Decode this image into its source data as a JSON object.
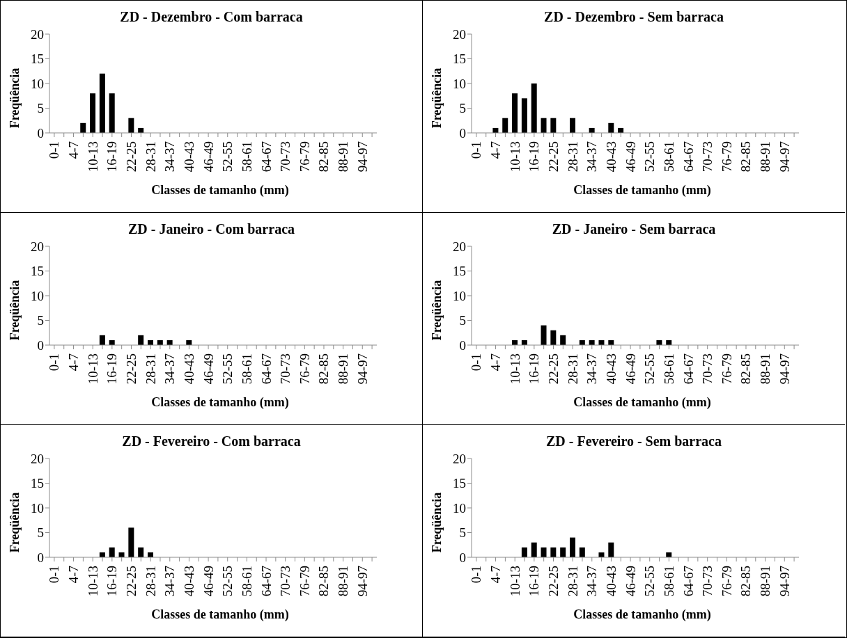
{
  "chart_data": [
    {
      "type": "bar",
      "title": "ZD - Dezembro - Com barraca",
      "xlabel": "Classes de tamanho (mm)",
      "ylabel": "Freqüência",
      "categories": [
        "0-1",
        null,
        "4-7",
        null,
        "10-13",
        null,
        "16-19",
        null,
        "22-25",
        null,
        "28-31",
        null,
        "34-37",
        null,
        "40-43",
        null,
        "46-49",
        null,
        "52-55",
        null,
        "58-61",
        null,
        "64-67",
        null,
        "70-73",
        null,
        "76-79",
        null,
        "82-85",
        null,
        "88-91",
        null,
        "94-97",
        null
      ],
      "values": [
        0,
        0,
        0,
        2,
        8,
        12,
        8,
        0,
        3,
        1,
        0,
        0,
        0,
        0,
        0,
        0,
        0,
        0,
        0,
        0,
        0,
        0,
        0,
        0,
        0,
        0,
        0,
        0,
        0,
        0,
        0,
        0,
        0,
        0
      ],
      "color": "#000000",
      "ylim": [
        0,
        20
      ],
      "yticks": [
        0,
        5,
        10,
        15,
        20
      ],
      "grid": false,
      "legend": false
    },
    {
      "type": "bar",
      "title": "ZD - Dezembro - Sem barraca",
      "xlabel": "Classes de tamanho (mm)",
      "ylabel": "Freqüência",
      "categories": [
        "0-1",
        null,
        "4-7",
        null,
        "10-13",
        null,
        "16-19",
        null,
        "22-25",
        null,
        "28-31",
        null,
        "34-37",
        null,
        "40-43",
        null,
        "46-49",
        null,
        "52-55",
        null,
        "58-61",
        null,
        "64-67",
        null,
        "70-73",
        null,
        "76-79",
        null,
        "82-85",
        null,
        "88-91",
        null,
        "94-97",
        null
      ],
      "values": [
        0,
        0,
        1,
        3,
        8,
        7,
        10,
        3,
        3,
        0,
        3,
        0,
        1,
        0,
        2,
        1,
        0,
        0,
        0,
        0,
        0,
        0,
        0,
        0,
        0,
        0,
        0,
        0,
        0,
        0,
        0,
        0,
        0,
        0
      ],
      "color": "#000000",
      "ylim": [
        0,
        20
      ],
      "yticks": [
        0,
        5,
        10,
        15,
        20
      ],
      "grid": false,
      "legend": false
    },
    {
      "type": "bar",
      "title": "ZD - Janeiro - Com barraca",
      "xlabel": "Classes de tamanho (mm)",
      "ylabel": "Freqüência",
      "categories": [
        "0-1",
        null,
        "4-7",
        null,
        "10-13",
        null,
        "16-19",
        null,
        "22-25",
        null,
        "28-31",
        null,
        "34-37",
        null,
        "40-43",
        null,
        "46-49",
        null,
        "52-55",
        null,
        "58-61",
        null,
        "64-67",
        null,
        "70-73",
        null,
        "76-79",
        null,
        "82-85",
        null,
        "88-91",
        null,
        "94-97",
        null
      ],
      "values": [
        0,
        0,
        0,
        0,
        0,
        2,
        1,
        0,
        0,
        2,
        1,
        1,
        1,
        0,
        1,
        0,
        0,
        0,
        0,
        0,
        0,
        0,
        0,
        0,
        0,
        0,
        0,
        0,
        0,
        0,
        0,
        0,
        0,
        0
      ],
      "color": "#000000",
      "ylim": [
        0,
        20
      ],
      "yticks": [
        0,
        5,
        10,
        15,
        20
      ],
      "grid": false,
      "legend": false
    },
    {
      "type": "bar",
      "title": "ZD - Janeiro - Sem barraca",
      "xlabel": "Classes de tamanho (mm)",
      "ylabel": "Freqüência",
      "categories": [
        "0-1",
        null,
        "4-7",
        null,
        "10-13",
        null,
        "16-19",
        null,
        "22-25",
        null,
        "28-31",
        null,
        "34-37",
        null,
        "40-43",
        null,
        "46-49",
        null,
        "52-55",
        null,
        "58-61",
        null,
        "64-67",
        null,
        "70-73",
        null,
        "76-79",
        null,
        "82-85",
        null,
        "88-91",
        null,
        "94-97",
        null
      ],
      "values": [
        0,
        0,
        0,
        0,
        1,
        1,
        0,
        4,
        3,
        2,
        0,
        1,
        1,
        1,
        1,
        0,
        0,
        0,
        0,
        1,
        1,
        0,
        0,
        0,
        0,
        0,
        0,
        0,
        0,
        0,
        0,
        0,
        0,
        0
      ],
      "color": "#000000",
      "ylim": [
        0,
        20
      ],
      "yticks": [
        0,
        5,
        10,
        15,
        20
      ],
      "grid": false,
      "legend": false
    },
    {
      "type": "bar",
      "title": "ZD - Fevereiro - Com barraca",
      "xlabel": "Classes de tamanho (mm)",
      "ylabel": "Freqüência",
      "categories": [
        "0-1",
        null,
        "4-7",
        null,
        "10-13",
        null,
        "16-19",
        null,
        "22-25",
        null,
        "28-31",
        null,
        "34-37",
        null,
        "40-43",
        null,
        "46-49",
        null,
        "52-55",
        null,
        "58-61",
        null,
        "64-67",
        null,
        "70-73",
        null,
        "76-79",
        null,
        "82-85",
        null,
        "88-91",
        null,
        "94-97",
        null
      ],
      "values": [
        0,
        0,
        0,
        0,
        0,
        1,
        2,
        1,
        6,
        2,
        1,
        0,
        0,
        0,
        0,
        0,
        0,
        0,
        0,
        0,
        0,
        0,
        0,
        0,
        0,
        0,
        0,
        0,
        0,
        0,
        0,
        0,
        0,
        0
      ],
      "color": "#000000",
      "ylim": [
        0,
        20
      ],
      "yticks": [
        0,
        5,
        10,
        15,
        20
      ],
      "grid": false,
      "legend": false
    },
    {
      "type": "bar",
      "title": "ZD - Fevereiro - Sem barraca",
      "xlabel": "Classes de tamanho (mm)",
      "ylabel": "Freqüência",
      "categories": [
        "0-1",
        null,
        "4-7",
        null,
        "10-13",
        null,
        "16-19",
        null,
        "22-25",
        null,
        "28-31",
        null,
        "34-37",
        null,
        "40-43",
        null,
        "46-49",
        null,
        "52-55",
        null,
        "58-61",
        null,
        "64-67",
        null,
        "70-73",
        null,
        "76-79",
        null,
        "82-85",
        null,
        "88-91",
        null,
        "94-97",
        null
      ],
      "values": [
        0,
        0,
        0,
        0,
        0,
        2,
        3,
        2,
        2,
        2,
        4,
        2,
        0,
        1,
        3,
        0,
        0,
        0,
        0,
        0,
        1,
        0,
        0,
        0,
        0,
        0,
        0,
        0,
        0,
        0,
        0,
        0,
        0,
        0
      ],
      "color": "#000000",
      "ylim": [
        0,
        20
      ],
      "yticks": [
        0,
        5,
        10,
        15,
        20
      ],
      "grid": false,
      "legend": false
    }
  ]
}
